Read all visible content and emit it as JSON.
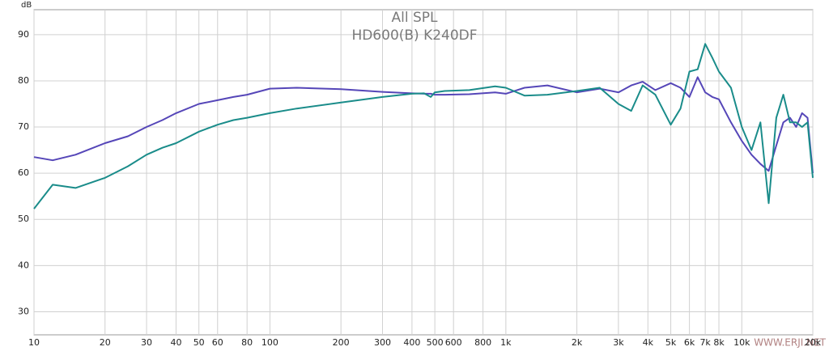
{
  "chart_data": {
    "type": "line",
    "title": "All SPL",
    "subtitle": "HD600(B) K240DF",
    "y_label": "dB",
    "annotation": "WWW.ERJI.NET",
    "x_scale": "log",
    "grid": true,
    "xlim": [
      10,
      20000
    ],
    "ylim": [
      25,
      95.4
    ],
    "xticks": [
      10,
      20,
      30,
      40,
      50,
      60,
      80,
      100,
      200,
      300,
      400,
      500,
      600,
      800,
      {
        "value": 1000,
        "label": "1k"
      },
      {
        "value": 2000,
        "label": "2k"
      },
      {
        "value": 3000,
        "label": "3k"
      },
      {
        "value": 4000,
        "label": "4k"
      },
      {
        "value": 5000,
        "label": "5k"
      },
      {
        "value": 6000,
        "label": "6k"
      },
      {
        "value": 7000,
        "label": "7k"
      },
      {
        "value": 8000,
        "label": "8k"
      },
      {
        "value": 10000,
        "label": "10k"
      },
      {
        "value": 20000,
        "label": "20k"
      }
    ],
    "yticks": [
      30,
      40,
      50,
      60,
      70,
      80,
      90
    ],
    "x": [
      10,
      12,
      15,
      20,
      25,
      30,
      35,
      40,
      50,
      60,
      70,
      80,
      100,
      130,
      200,
      300,
      400,
      450,
      480,
      500,
      550,
      700,
      900,
      1000,
      1200,
      1500,
      2000,
      2500,
      3000,
      3400,
      3800,
      4300,
      5000,
      5500,
      6000,
      6500,
      7000,
      7500,
      8000,
      9000,
      10000,
      11000,
      12000,
      13000,
      14000,
      15000,
      16000,
      17000,
      18000,
      19000,
      20000
    ],
    "series": [
      {
        "color": "#5546b8",
        "values": [
          63.5,
          62.8,
          64,
          66.5,
          68,
          70,
          71.5,
          73,
          75,
          75.8,
          76.5,
          77,
          78.3,
          78.5,
          78.2,
          77.6,
          77.3,
          77.2,
          77.2,
          77,
          77,
          77.1,
          77.5,
          77.2,
          78.5,
          79,
          77.5,
          78.3,
          77.5,
          79,
          79.8,
          78,
          79.5,
          78.5,
          76.5,
          80.8,
          77.5,
          76.5,
          76,
          71,
          67,
          64,
          62,
          60.5,
          66,
          71,
          72,
          70,
          73,
          72,
          60
        ]
      },
      {
        "color": "#1a8c8a",
        "values": [
          52.3,
          57.5,
          56.8,
          59,
          61.5,
          64,
          65.5,
          66.5,
          69,
          70.5,
          71.5,
          72,
          73,
          74,
          75.3,
          76.5,
          77.2,
          77.3,
          76.5,
          77.5,
          77.8,
          78,
          78.8,
          78.5,
          76.8,
          77,
          77.8,
          78.5,
          75,
          73.5,
          79,
          77,
          70.5,
          74,
          82,
          82.5,
          88,
          85,
          82,
          78.5,
          70,
          65,
          71,
          53.5,
          72,
          77,
          71,
          71,
          70,
          71,
          59
        ]
      }
    ]
  }
}
